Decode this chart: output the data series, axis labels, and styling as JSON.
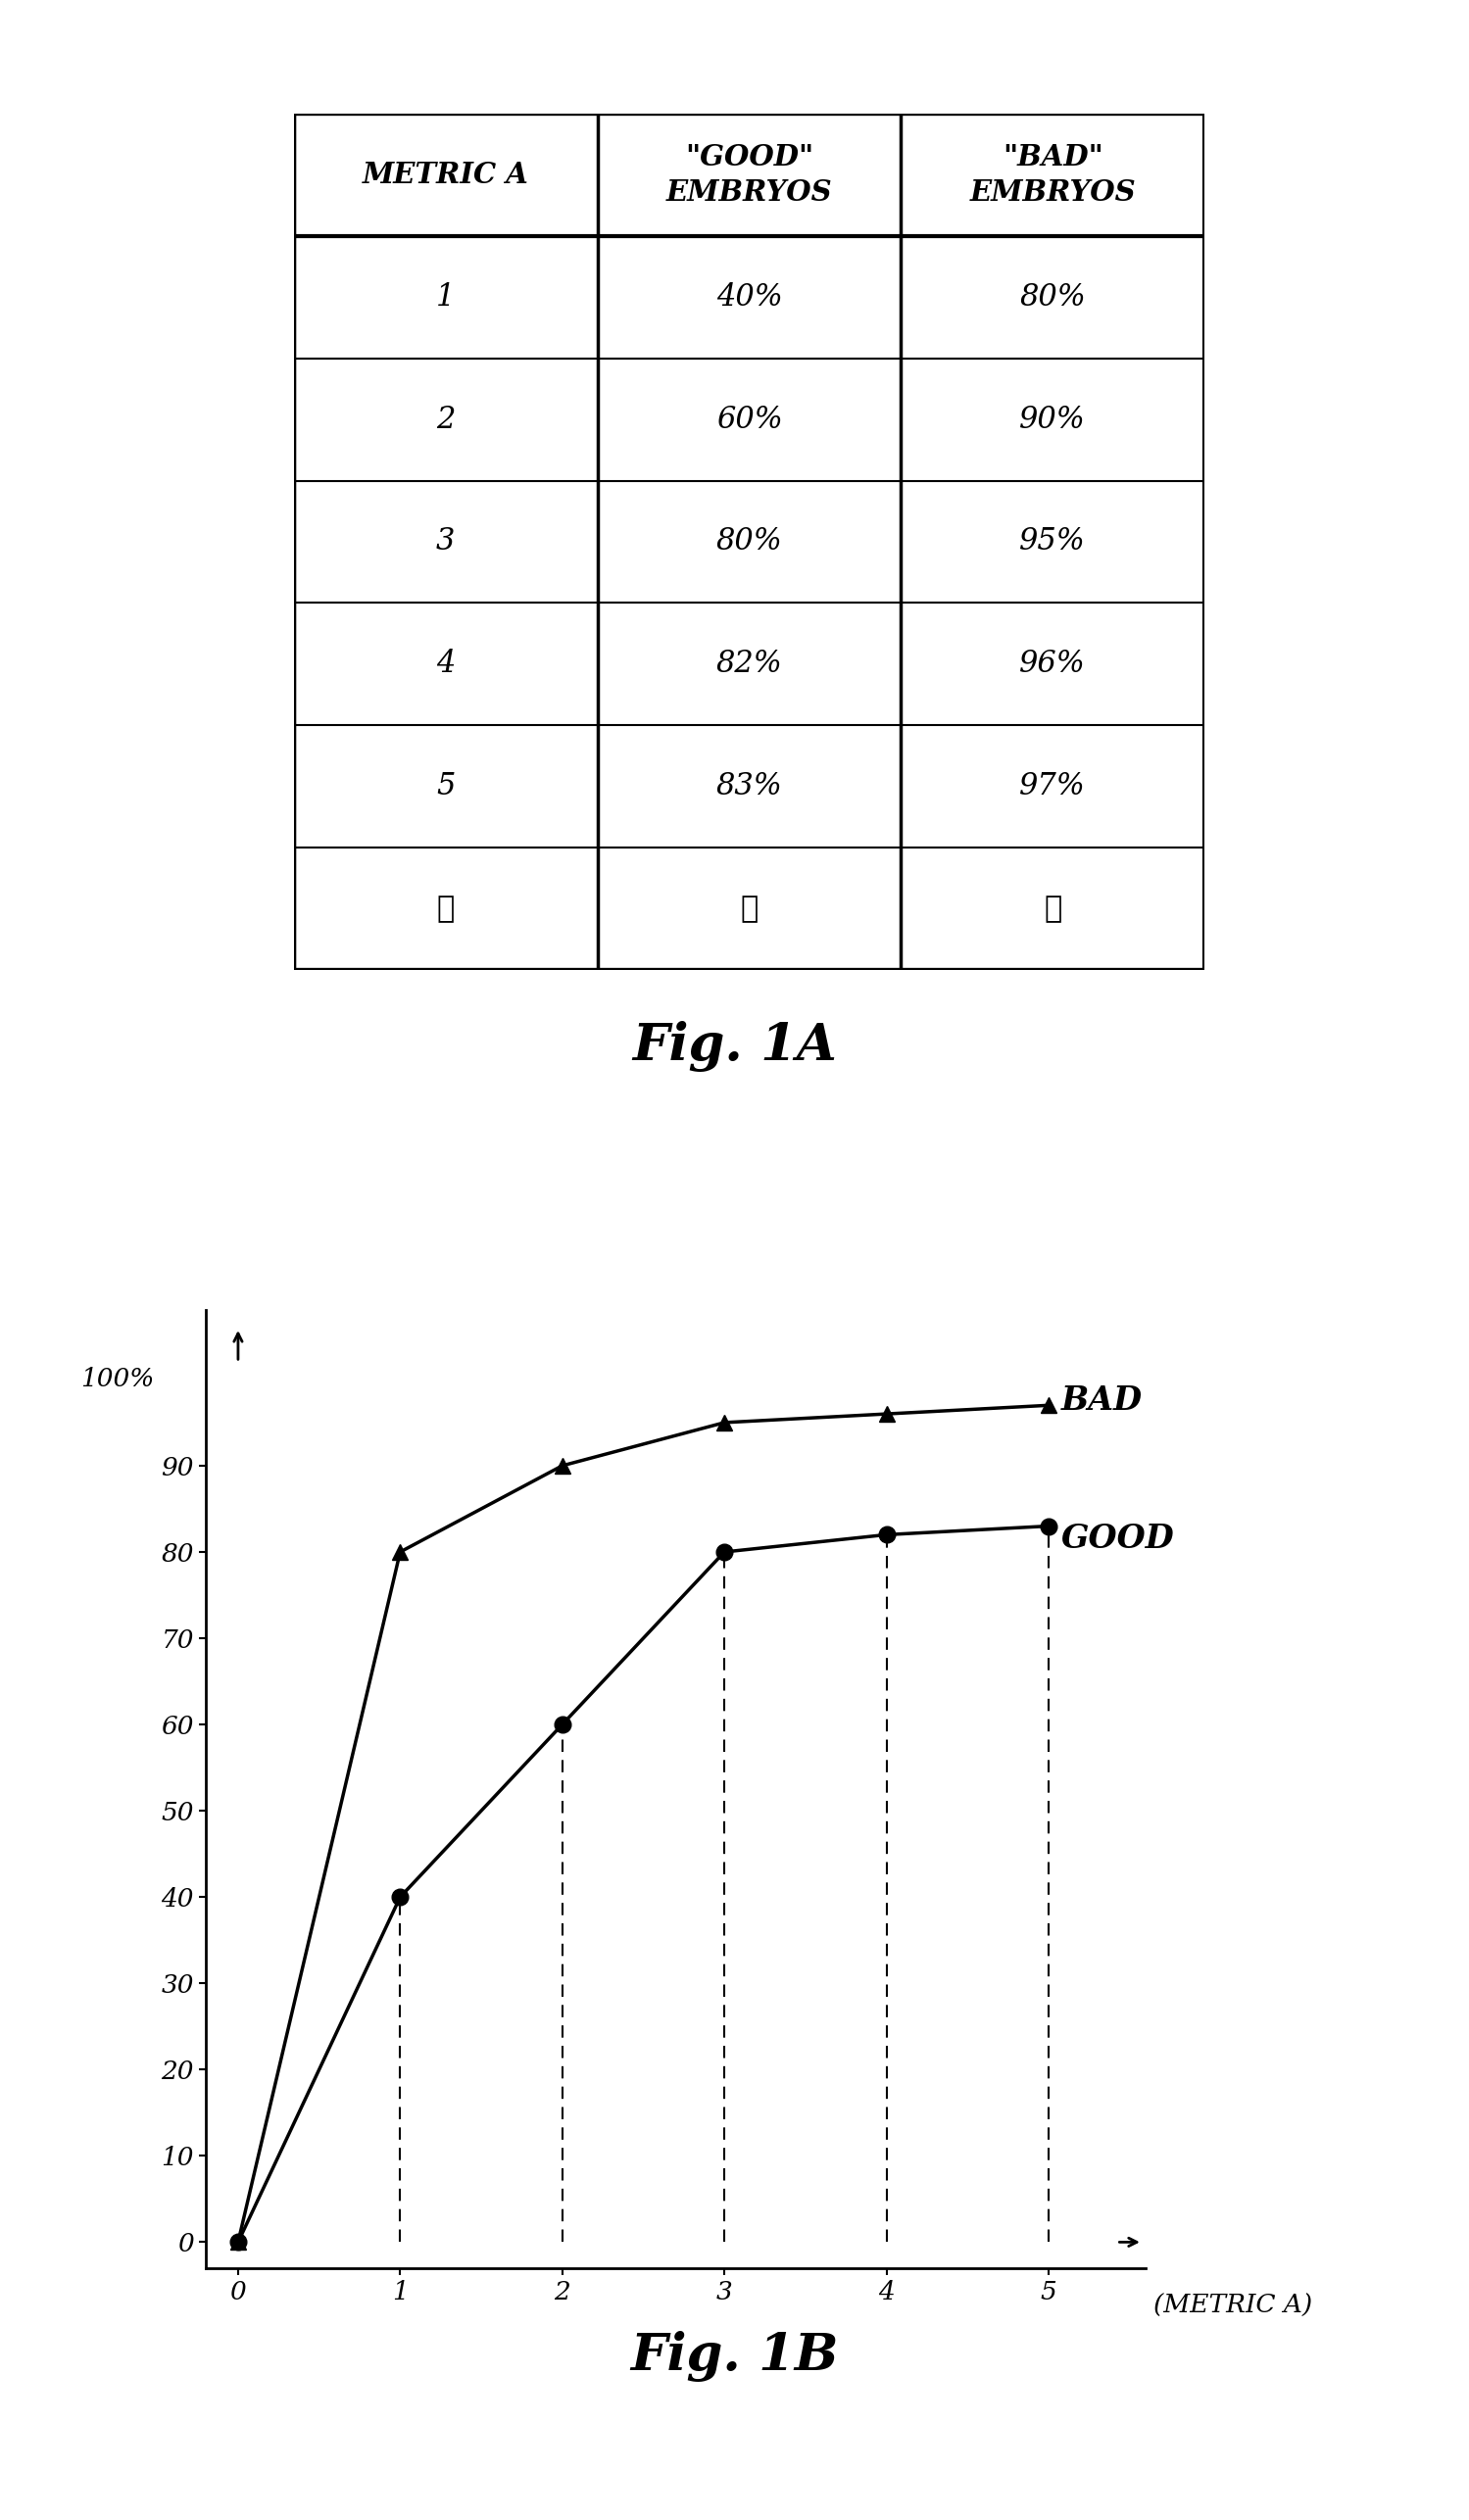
{
  "table": {
    "header": [
      "METRIC A",
      "\"GOOD\"\nEMBRYOS",
      "\"BAD\"\nEMBRYOS"
    ],
    "rows": [
      [
        "1",
        "40%",
        "80%"
      ],
      [
        "2",
        "60%",
        "90%"
      ],
      [
        "3",
        "80%",
        "95%"
      ],
      [
        "4",
        "82%",
        "96%"
      ],
      [
        "5",
        "83%",
        "97%"
      ],
      [
        "⋮",
        "⋮",
        "⋮"
      ]
    ]
  },
  "fig1a_label": "Fig. 1A",
  "fig1b_label": "Fig. 1B",
  "chart": {
    "good_x": [
      0,
      1,
      2,
      3,
      4,
      5
    ],
    "good_y": [
      0,
      40,
      60,
      80,
      82,
      83
    ],
    "bad_x": [
      0,
      1,
      2,
      3,
      4,
      5
    ],
    "bad_y": [
      0,
      80,
      90,
      95,
      96,
      97
    ],
    "dashed_x": [
      1,
      2,
      3,
      4,
      5
    ],
    "yticks": [
      0,
      10,
      20,
      30,
      40,
      50,
      60,
      70,
      80,
      90
    ],
    "ytick_labels": [
      "0",
      "10",
      "20",
      "30",
      "40",
      "50",
      "60",
      "70",
      "80",
      "90"
    ],
    "y100_label": "100%",
    "xticks": [
      0,
      1,
      2,
      3,
      4,
      5
    ],
    "xtick_labels": [
      "0",
      "1",
      "2",
      "3",
      "4",
      "5"
    ],
    "xlabel": "(METRIC A)",
    "bad_label": "BAD",
    "good_label": "GOOD"
  },
  "background_color": "#ffffff"
}
